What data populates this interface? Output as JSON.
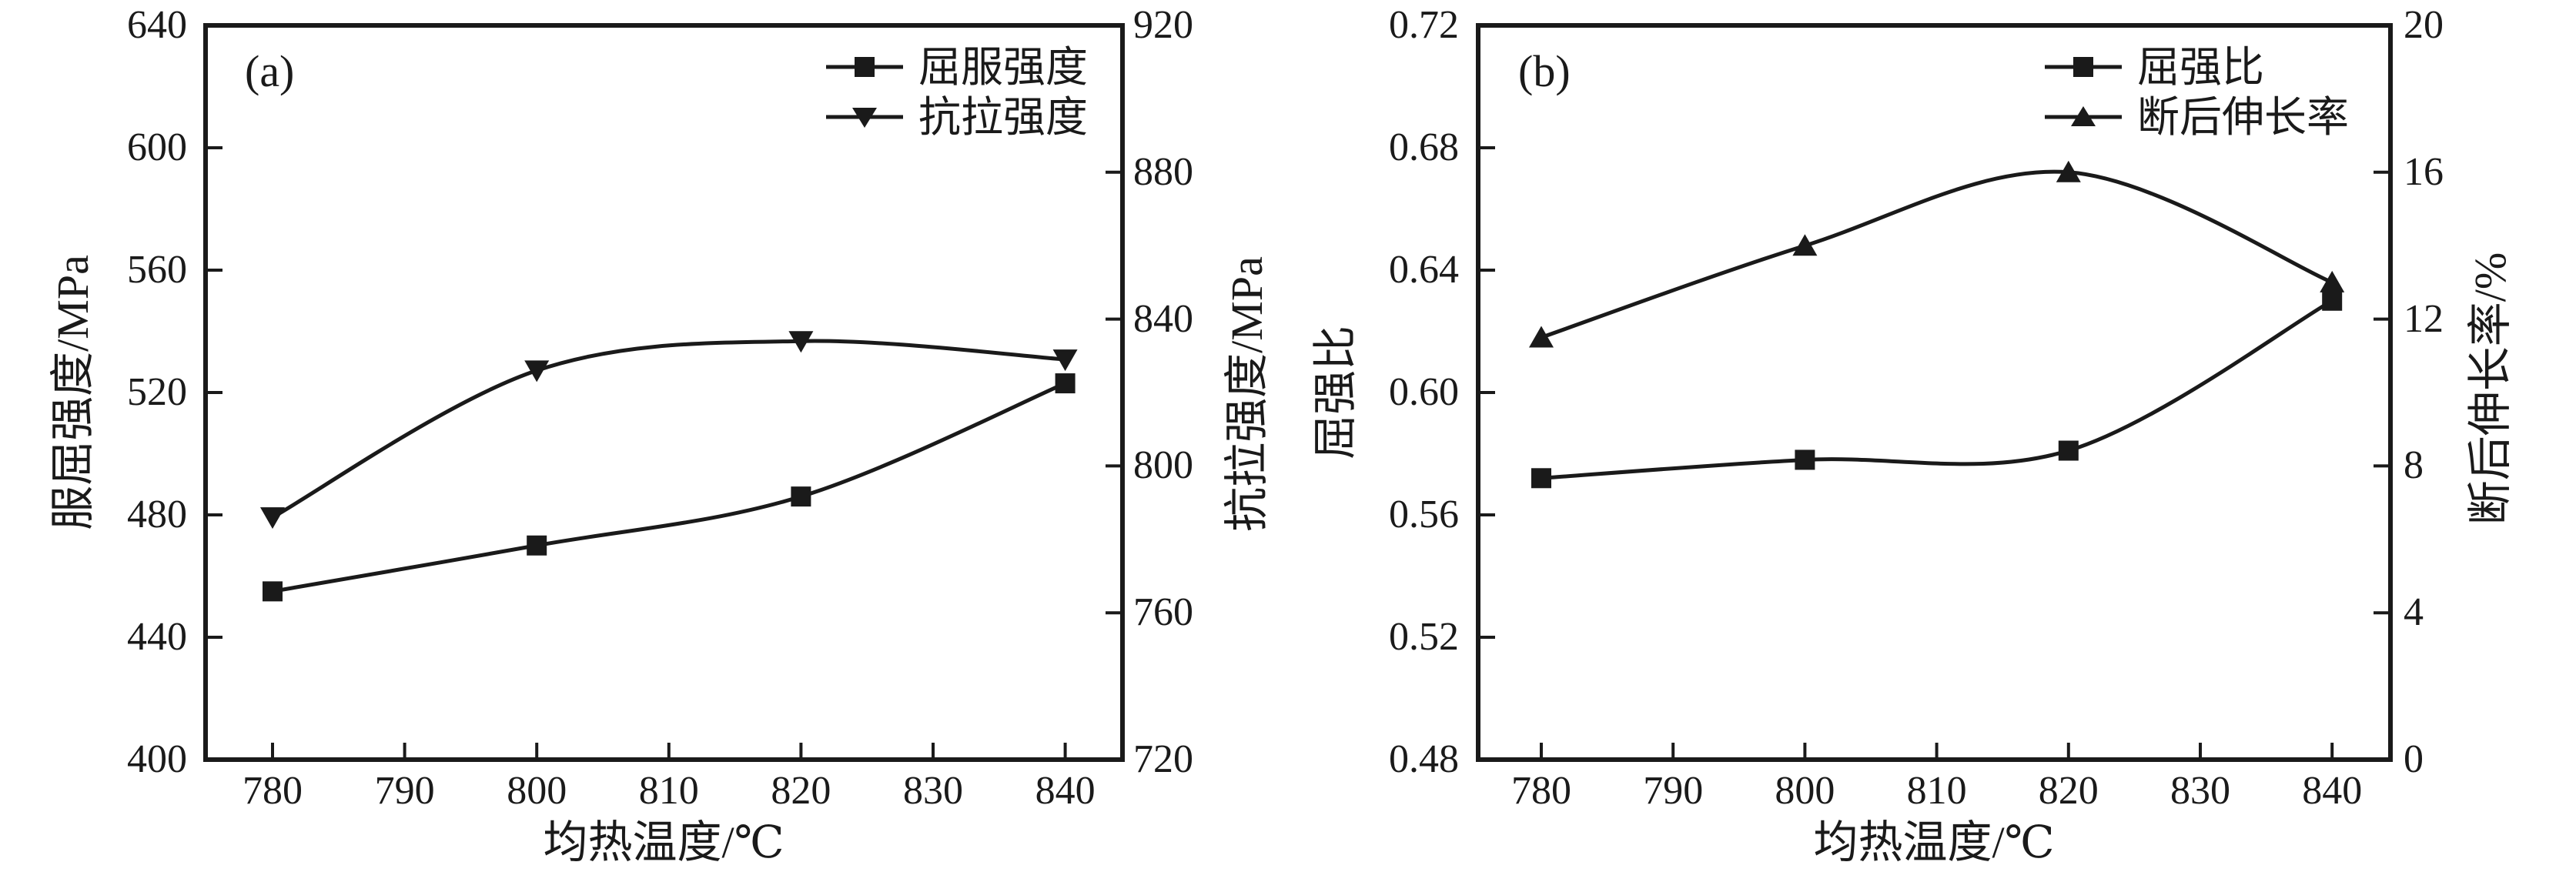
{
  "colors": {
    "line": "#1a1a1a",
    "text": "#1a1a1a",
    "background": "#ffffff"
  },
  "chart_data": [
    {
      "id": "a",
      "type": "line",
      "panel_label": "(a)",
      "xlabel": "均热温度/℃",
      "ylabel_left": "服屈强度/MPa",
      "ylabel_right": "抗拉强度/MPa",
      "x_tick_labels": [
        "780",
        "790",
        "800",
        "810",
        "820",
        "830",
        "840"
      ],
      "y_left": {
        "tick_labels": [
          "640",
          "600",
          "560",
          "520",
          "480",
          "440",
          "400"
        ],
        "lim": [
          400,
          640
        ]
      },
      "y_right": {
        "tick_labels": [
          "920",
          "880",
          "840",
          "800",
          "760",
          "720"
        ],
        "lim": [
          720,
          920
        ]
      },
      "grid": false,
      "legend_position": "top-right",
      "series": [
        {
          "name": "屈服强度",
          "axis": "left",
          "marker": "square",
          "x": [
            780,
            800,
            820,
            840
          ],
          "y": [
            455,
            470,
            486,
            523
          ]
        },
        {
          "name": "抗拉强度",
          "axis": "right",
          "marker": "triangle-down",
          "x": [
            780,
            800,
            820,
            840
          ],
          "y": [
            786,
            826,
            834,
            829
          ]
        }
      ]
    },
    {
      "id": "b",
      "type": "line",
      "panel_label": "(b)",
      "xlabel": "均热温度/℃",
      "ylabel_left": "屈强比",
      "ylabel_right": "断后伸长率/%",
      "x_tick_labels": [
        "780",
        "790",
        "800",
        "810",
        "820",
        "830",
        "840"
      ],
      "y_left": {
        "tick_labels": [
          "0.72",
          "0.68",
          "0.64",
          "0.60",
          "0.56",
          "0.52",
          "0.48"
        ],
        "lim": [
          0.48,
          0.72
        ]
      },
      "y_right": {
        "tick_labels": [
          "20",
          "16",
          "12",
          "8",
          "4",
          "0"
        ],
        "lim": [
          0,
          20
        ]
      },
      "grid": false,
      "legend_position": "top-right",
      "series": [
        {
          "name": "屈强比",
          "axis": "left",
          "marker": "square",
          "x": [
            780,
            800,
            820,
            840
          ],
          "y": [
            0.572,
            0.578,
            0.581,
            0.63
          ]
        },
        {
          "name": "断后伸长率",
          "axis": "right",
          "marker": "triangle-up",
          "x": [
            780,
            800,
            820,
            840
          ],
          "y": [
            11.5,
            14.0,
            16.0,
            13.0
          ]
        }
      ]
    }
  ]
}
